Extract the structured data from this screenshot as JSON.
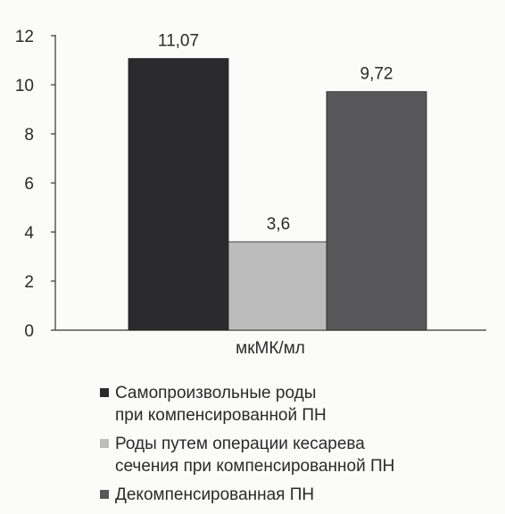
{
  "chart_data": {
    "type": "bar",
    "categories": [
      "мкМК/мл"
    ],
    "xlabel": "мкМК/мл",
    "ylim": [
      0,
      12
    ],
    "yticks": [
      0,
      2,
      4,
      6,
      8,
      10,
      12
    ],
    "grid": false,
    "legend_position": "bottom",
    "series": [
      {
        "name": "Самопроизвольные роды\nпри компенсированной ПН",
        "values": [
          11.07
        ],
        "label": "11,07",
        "color": "#2b2b2e"
      },
      {
        "name": "Роды путем операции кесарева\nсечения при компенсированной ПН",
        "values": [
          3.6
        ],
        "label": "3,6",
        "color": "#bcbcbc"
      },
      {
        "name": "Декомпенсированная ПН",
        "values": [
          9.72
        ],
        "label": "9,72",
        "color": "#58585a"
      }
    ]
  }
}
